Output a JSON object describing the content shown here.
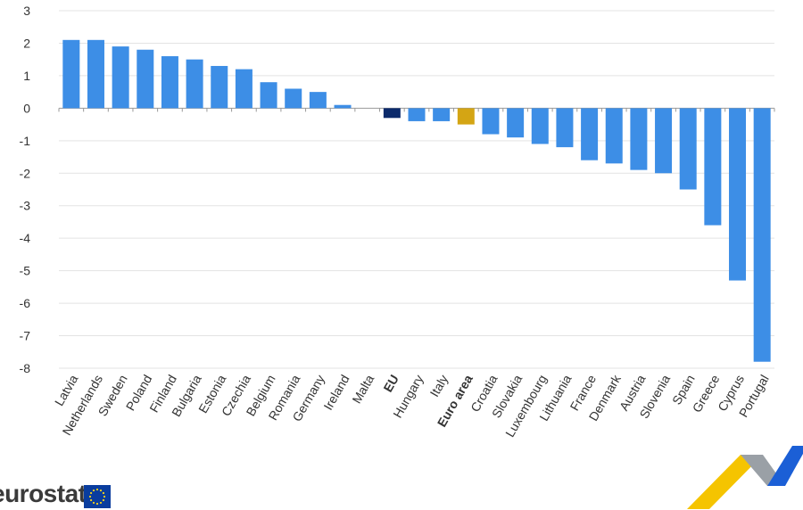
{
  "chart_data": {
    "type": "bar",
    "ylim": [
      -8,
      3
    ],
    "yticks": [
      3,
      2,
      1,
      0,
      -1,
      -2,
      -3,
      -4,
      -5,
      -6,
      -7,
      -8
    ],
    "grid": true,
    "categories": [
      "Latvia",
      "Netherlands",
      "Sweden",
      "Poland",
      "Finland",
      "Bulgaria",
      "Estonia",
      "Czechia",
      "Belgium",
      "Romania",
      "Germany",
      "Ireland",
      "Malta",
      "EU",
      "Hungary",
      "Italy",
      "Euro area",
      "Croatia",
      "Slovakia",
      "Luxembourg",
      "Lithuania",
      "France",
      "Denmark",
      "Austria",
      "Slovenia",
      "Spain",
      "Greece",
      "Cyprus",
      "Portugal"
    ],
    "values": [
      2.1,
      2.1,
      1.9,
      1.8,
      1.6,
      1.5,
      1.3,
      1.2,
      0.8,
      0.6,
      0.5,
      0.1,
      0.0,
      -0.3,
      -0.4,
      -0.4,
      -0.5,
      -0.8,
      -0.9,
      -1.1,
      -1.2,
      -1.6,
      -1.7,
      -1.9,
      -2.0,
      -2.5,
      -3.6,
      -5.3,
      -7.8
    ],
    "highlight": {
      "EU": "#0b2a6b",
      "Euro area": "#d4a514"
    },
    "bold_categories": [
      "EU",
      "Euro area"
    ],
    "bar_color": "#3d8ee6"
  },
  "branding": {
    "logo_text": "eurostat",
    "flag_color": "#0a3d9e",
    "star_color": "#f5d31a",
    "deco_colors": [
      "#f5c400",
      "#9aa0a6",
      "#1b5fd6"
    ]
  }
}
